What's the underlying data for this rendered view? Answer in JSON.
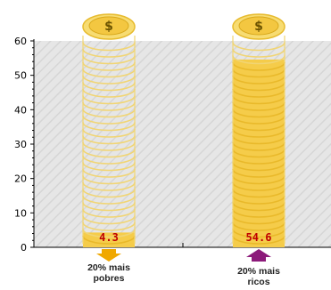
{
  "chart_data": {
    "type": "bar",
    "title": "",
    "xlabel": "",
    "ylabel": "",
    "ylim": [
      0,
      60
    ],
    "yticks": [
      0,
      10,
      20,
      30,
      40,
      50,
      60
    ],
    "grid": false,
    "categories": [
      {
        "line1": "20% mais",
        "line2": "pobres"
      },
      {
        "line1": "20% mais",
        "line2": "ricos"
      }
    ],
    "values": [
      4.3,
      54.6
    ],
    "value_labels": [
      "4.3",
      "54.6"
    ],
    "colors": {
      "bar_fill": "#f5cc4a",
      "value_text": "#c00000",
      "arrow_poor": "#f0a800",
      "arrow_rich": "#8c1a7a",
      "plot_background": "#e4e4e4",
      "coin_edge": "#f1d574",
      "coin_symbol": "#6b5300"
    },
    "icons": [
      "dollar-coin-icon",
      "arrow-down-icon",
      "arrow-up-icon"
    ],
    "coin_symbol": "$"
  }
}
